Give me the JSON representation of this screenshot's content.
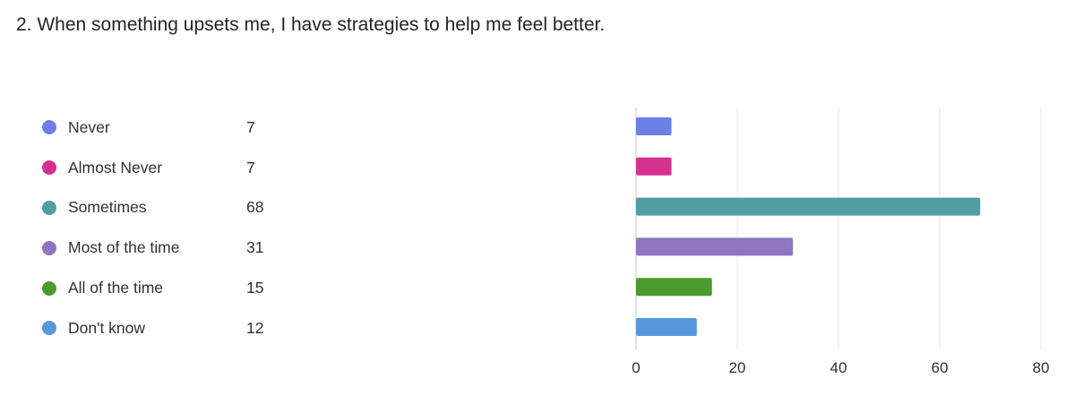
{
  "question": {
    "title": "2. When something upsets me, I have strategies to help me feel better."
  },
  "chart_data": {
    "type": "bar",
    "orientation": "horizontal",
    "categories": [
      "Never",
      "Almost Never",
      "Sometimes",
      "Most of the time",
      "All of the time",
      "Don't know"
    ],
    "values": [
      7,
      7,
      68,
      31,
      15,
      12
    ],
    "colors": [
      "#6b7fe6",
      "#d6318f",
      "#519ea2",
      "#8f76c0",
      "#4c9b2f",
      "#5598db"
    ],
    "xlim": [
      0,
      80
    ],
    "xticks": [
      0,
      20,
      40,
      60,
      80
    ],
    "grid": true,
    "legend_position": "left"
  }
}
